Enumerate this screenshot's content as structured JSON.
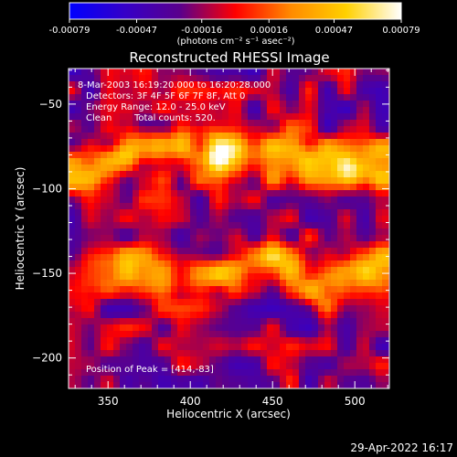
{
  "colorbar": {
    "tick_labels": [
      "-0.00079",
      "-0.00047",
      "-0.00016",
      "0.00016",
      "0.00047",
      "0.00079"
    ],
    "tick_values": [
      -0.00079,
      -0.00047,
      -0.00016,
      0.00016,
      0.00047,
      0.00079
    ],
    "range": [
      -0.00079,
      0.00079
    ],
    "unit_label": "(photons cm⁻² s⁻¹ asec⁻²)",
    "colors": [
      "#0000ff",
      "#3500c8",
      "#5a008c",
      "#ff0000",
      "#ff8a00",
      "#ffd000",
      "#ffffff"
    ]
  },
  "annotations": {
    "time_range": "8-Mar-2003 16:19:20.000 to 16:20:28.000",
    "detectors": "Detectors: 3F 4F 5F 6F 7F 8F, Att 0",
    "energy": "Energy Range: 12.0 - 25.0 keV",
    "method": "Clean",
    "counts": "Total counts: 520.",
    "peak": "Position of Peak = [414,-83]"
  },
  "footer": {
    "timestamp": "29-Apr-2022 16:17"
  },
  "chart_data": {
    "type": "heatmap",
    "title": "Reconstructed RHESSI Image",
    "xlabel": "Heliocentric X (arcsec)",
    "ylabel": "Heliocentric Y (arcsec)",
    "xlim": [
      326,
      521
    ],
    "ylim": [
      -218,
      -29
    ],
    "xticks": [
      350,
      400,
      450,
      500
    ],
    "yticks": [
      -50,
      -100,
      -150,
      -200
    ],
    "xtick_labels": [
      "350",
      "400",
      "450",
      "500"
    ],
    "ytick_labels": [
      "−50",
      "−100",
      "−150",
      "−200"
    ],
    "peak": [
      414,
      -83
    ],
    "bands": [
      {
        "y_center": -82,
        "y_halfwidth": 13,
        "x_range": [
          330,
          520
        ],
        "peak": 0.00075
      },
      {
        "y_center": -150,
        "y_halfwidth": 14,
        "x_range": [
          326,
          521
        ],
        "peak": 0.0006
      }
    ],
    "background_level": -0.0002
  }
}
